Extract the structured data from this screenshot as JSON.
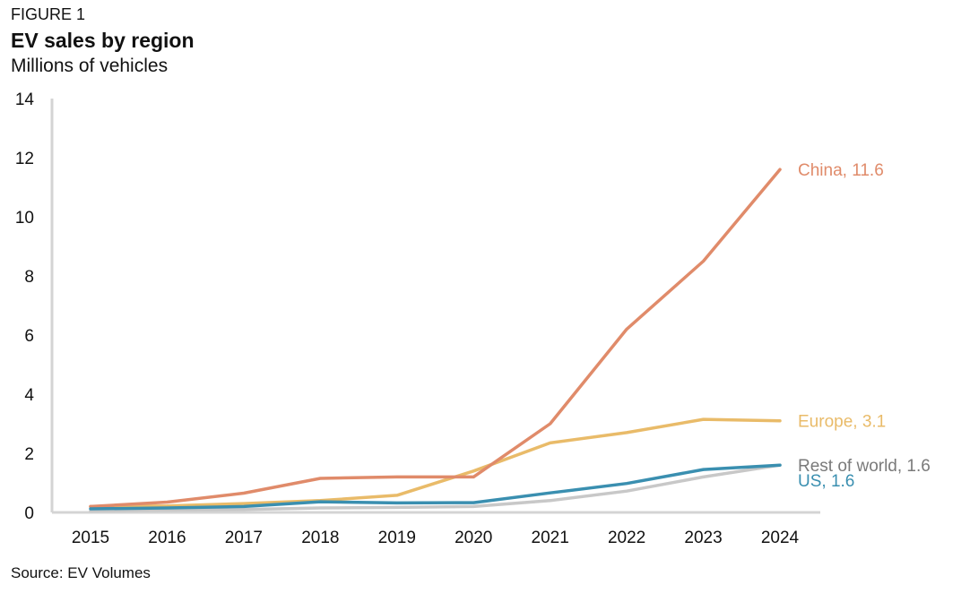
{
  "figure_label": "FIGURE 1",
  "source": "Source: EV Volumes",
  "chart_data": {
    "type": "line",
    "title": "EV sales by region",
    "subtitle": "Millions of vehicles",
    "xlabel": "",
    "ylabel": "",
    "x": [
      "2015",
      "2016",
      "2017",
      "2018",
      "2019",
      "2020",
      "2021",
      "2022",
      "2023",
      "2024"
    ],
    "ylim": [
      0,
      14
    ],
    "yticks": [
      0,
      2,
      4,
      6,
      8,
      10,
      12,
      14
    ],
    "grid": false,
    "series": [
      {
        "name": "China",
        "label": "China, 11.6",
        "color": "#e08b6a",
        "values": [
          0.2,
          0.35,
          0.65,
          1.15,
          1.2,
          1.2,
          3.0,
          6.2,
          8.5,
          11.6
        ]
      },
      {
        "name": "Europe",
        "label": "Europe, 3.1",
        "color": "#e9bb69",
        "values": [
          0.2,
          0.22,
          0.3,
          0.4,
          0.58,
          1.4,
          2.35,
          2.7,
          3.15,
          3.1
        ]
      },
      {
        "name": "Rest of world",
        "label": "Rest of world, 1.6",
        "color": "#c8c8c8",
        "label_color": "#7a7a7a",
        "values": [
          0.05,
          0.08,
          0.1,
          0.15,
          0.17,
          0.2,
          0.4,
          0.72,
          1.2,
          1.6
        ]
      },
      {
        "name": "US",
        "label": "US, 1.6",
        "color": "#3a8fb0",
        "values": [
          0.12,
          0.15,
          0.2,
          0.36,
          0.32,
          0.33,
          0.66,
          0.98,
          1.45,
          1.6
        ]
      }
    ]
  }
}
